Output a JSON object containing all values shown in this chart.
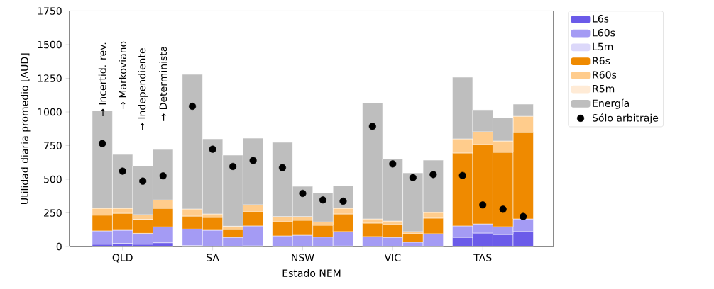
{
  "chart_data": {
    "type": "bar",
    "stacked": true,
    "xlabel": "Estado NEM",
    "ylabel": "Utilidad diaria promedio [AUD]",
    "categories": [
      null,
      "QLD",
      null,
      null,
      null,
      "SA",
      null,
      null,
      null,
      "NSW",
      null,
      null,
      null,
      "VIC",
      null,
      null,
      null,
      "TAS",
      null,
      null
    ],
    "ylim": [
      0,
      1750
    ],
    "yticks": [
      0,
      250,
      500,
      750,
      1000,
      1250,
      1500,
      1750
    ],
    "legend": "top right",
    "series": [
      {
        "name": "L6s",
        "color": "#6b5be9",
        "values": [
          17,
          23,
          17,
          28,
          7,
          3,
          2,
          5,
          2,
          2,
          2,
          4,
          2,
          2,
          2,
          2,
          68,
          100,
          89,
          111
        ]
      },
      {
        "name": "L60s",
        "color": "#a49bf4",
        "values": [
          99,
          98,
          81,
          118,
          123,
          118,
          66,
          148,
          77,
          82,
          68,
          107,
          72,
          66,
          30,
          93,
          85,
          68,
          58,
          94
        ]
      },
      {
        "name": "L5m",
        "color": "#dcd8fa",
        "values": [
          0,
          0,
          0,
          0,
          0,
          0,
          0,
          0,
          0,
          0,
          0,
          0,
          0,
          0,
          0,
          0,
          0,
          0,
          0,
          0
        ]
      },
      {
        "name": "R6s",
        "color": "#ef8a00",
        "values": [
          117,
          126,
          104,
          138,
          96,
          95,
          58,
          105,
          105,
          111,
          88,
          131,
          100,
          95,
          63,
          116,
          542,
          590,
          553,
          642
        ]
      },
      {
        "name": "R60s",
        "color": "#ffcc8c",
        "values": [
          51,
          37,
          35,
          62,
          53,
          26,
          25,
          53,
          39,
          28,
          25,
          42,
          31,
          26,
          16,
          42,
          105,
          95,
          84,
          121
        ]
      },
      {
        "name": "R5m",
        "color": "#ffebd6",
        "values": [
          0,
          0,
          0,
          0,
          0,
          0,
          0,
          0,
          0,
          0,
          0,
          0,
          0,
          0,
          0,
          0,
          0,
          0,
          0,
          0
        ]
      },
      {
        "name": "Energía",
        "color": "#bebebe",
        "values": [
          726,
          400,
          363,
          375,
          1000,
          558,
          528,
          494,
          551,
          224,
          217,
          169,
          863,
          464,
          436,
          389,
          458,
          163,
          174,
          90
        ]
      },
      {
        "name": "Sólo arbitraje",
        "type": "scatter",
        "marker": "circle",
        "color": "#000000",
        "values": [
          765,
          560,
          486,
          525,
          1042,
          723,
          595,
          639,
          586,
          395,
          346,
          337,
          893,
          614,
          512,
          535,
          528,
          309,
          277,
          223
        ]
      }
    ],
    "annotations": [
      "→ Incertid. rev.",
      "→ Markoviano",
      "→ Independiente",
      "→ Determinista"
    ]
  }
}
